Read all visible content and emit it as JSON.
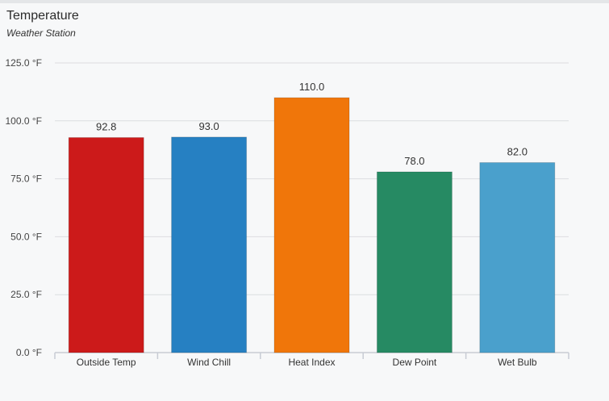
{
  "card": {
    "title": "Temperature",
    "subtitle": "Weather Station"
  },
  "chart_data": {
    "type": "bar",
    "categories": [
      "Outside Temp",
      "Wind Chill",
      "Heat Index",
      "Dew Point",
      "Wet Bulb"
    ],
    "values": [
      92.8,
      93.0,
      110.0,
      78.0,
      82.0
    ],
    "data_labels": [
      "92.8",
      "93.0",
      "110.0",
      "78.0",
      "82.0"
    ],
    "colors": [
      "#cc1a1a",
      "#2680c2",
      "#f0760a",
      "#268a63",
      "#4aa0cc"
    ],
    "ylim": [
      0,
      125
    ],
    "yticks": [
      0,
      25,
      50,
      75,
      100,
      125
    ],
    "ytick_labels": [
      "0.0 °F",
      "25.0 °F",
      "50.0 °F",
      "75.0 °F",
      "100.0 °F",
      "125.0 °F"
    ],
    "grid": true
  }
}
